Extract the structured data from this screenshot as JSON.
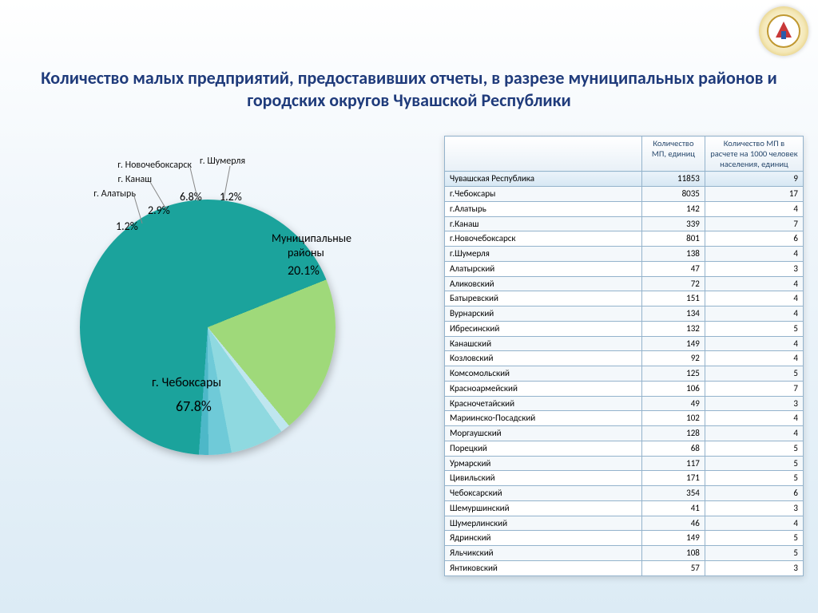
{
  "title": "Количество малых предприятий, предоставивших отчеты, в разрезе муниципальных районов и городских округов Чувашской Республики",
  "chart": {
    "type": "pie",
    "background_color": "#ffffff",
    "slices": [
      {
        "label": "г. Чебоксары",
        "pct": "67.8%",
        "value": 67.8,
        "color": "#1ba39c"
      },
      {
        "label": "Муниципальные\nрайоны",
        "pct": "20.1%",
        "value": 20.1,
        "color": "#9fd97a"
      },
      {
        "label": "г. Шумерля",
        "pct": "1.2%",
        "value": 1.2,
        "color": "#bfe6ef"
      },
      {
        "label": "г. Новочебоксарск",
        "pct": "6.8%",
        "value": 6.8,
        "color": "#8fd9e0"
      },
      {
        "label": "г. Канаш",
        "pct": "2.9%",
        "value": 2.9,
        "color": "#6fcad8"
      },
      {
        "label": "г. Алатырь",
        "pct": "1.2%",
        "value": 1.2,
        "color": "#4db8c8"
      }
    ],
    "big_label": "г. Чебоксары",
    "big_pct": "67.8%",
    "mun_label1": "Муниципальные",
    "mun_label2": "районы",
    "mun_pct": "20.1%",
    "c_shum": "г. Шумерля",
    "c_novo": "г. Новочебоксарск",
    "c_kan": "г. Канаш",
    "c_ala": "г. Алатырь",
    "p_shum": "1.2%",
    "p_novo": "6.8%",
    "p_kan": "2.9%",
    "p_ala": "1.2%"
  },
  "table": {
    "columns": [
      "",
      "Количество МП, единиц",
      "Количество МП в расчете на 1000 человек населения, единиц"
    ],
    "header_row": {
      "name": "Чувашская Республика",
      "c1": "11853",
      "c2": "9"
    },
    "rows": [
      {
        "name": "г.Чебоксары",
        "c1": "8035",
        "c2": "17"
      },
      {
        "name": "г.Алатырь",
        "c1": "142",
        "c2": "4"
      },
      {
        "name": "г.Канаш",
        "c1": "339",
        "c2": "7"
      },
      {
        "name": "г.Новочебоксарск",
        "c1": "801",
        "c2": "6"
      },
      {
        "name": "г.Шумерля",
        "c1": "138",
        "c2": "4"
      },
      {
        "name": "Алатырский",
        "c1": "47",
        "c2": "3"
      },
      {
        "name": "Аликовский",
        "c1": "72",
        "c2": "4"
      },
      {
        "name": "Батыревский",
        "c1": "151",
        "c2": "4"
      },
      {
        "name": "Вурнарский",
        "c1": "134",
        "c2": "4"
      },
      {
        "name": "Ибресинский",
        "c1": "132",
        "c2": "5"
      },
      {
        "name": "Канашский",
        "c1": "149",
        "c2": "4"
      },
      {
        "name": "Козловский",
        "c1": "92",
        "c2": "4"
      },
      {
        "name": "Комсомольский",
        "c1": "125",
        "c2": "5"
      },
      {
        "name": "Красноармейский",
        "c1": "106",
        "c2": "7"
      },
      {
        "name": "Красночетайский",
        "c1": "49",
        "c2": "3"
      },
      {
        "name": "Мариинско-Посадский",
        "c1": "102",
        "c2": "4"
      },
      {
        "name": "Моргаушский",
        "c1": "128",
        "c2": "4"
      },
      {
        "name": "Порецкий",
        "c1": "68",
        "c2": "5"
      },
      {
        "name": "Урмарский",
        "c1": "117",
        "c2": "5"
      },
      {
        "name": "Цивильский",
        "c1": "171",
        "c2": "5"
      },
      {
        "name": "Чебоксарский",
        "c1": "354",
        "c2": "6"
      },
      {
        "name": "Шемуршинский",
        "c1": "41",
        "c2": "3"
      },
      {
        "name": "Шумерлинский",
        "c1": "46",
        "c2": "4"
      },
      {
        "name": "Ядринский",
        "c1": "149",
        "c2": "5"
      },
      {
        "name": "Яльчикский",
        "c1": "108",
        "c2": "5"
      },
      {
        "name": "Янтиковский",
        "c1": "57",
        "c2": "3"
      }
    ]
  }
}
